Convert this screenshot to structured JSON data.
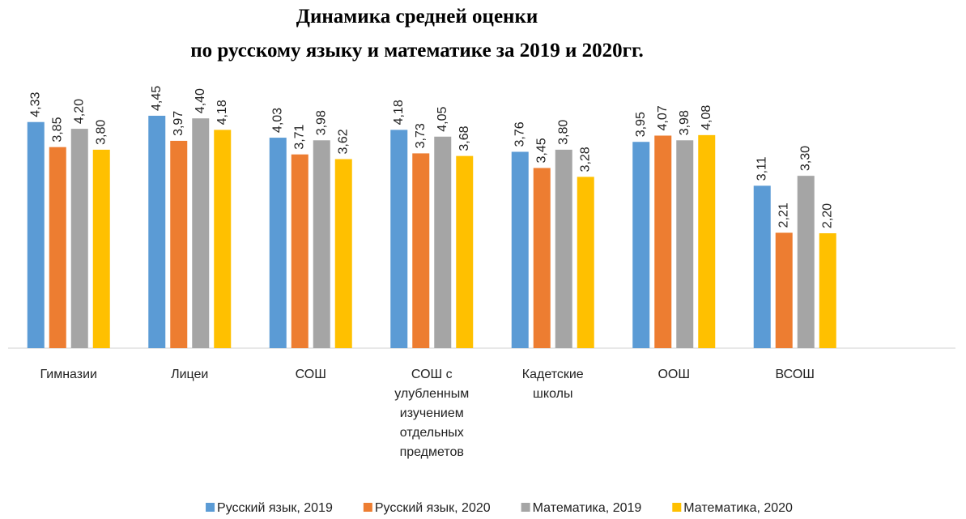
{
  "chart_data": {
    "type": "bar",
    "title_lines": [
      "Динамика средней оценки",
      "по русскому языку и математике за 2019 и 2020гг."
    ],
    "categories": [
      "Гимназии",
      "Лицеи",
      "СОШ",
      "СОШ с улубленным изучением отдельных предметов",
      "Кадетские школы",
      "ООШ",
      "ВСОШ"
    ],
    "series": [
      {
        "name": "Русский язык, 2019",
        "color": "#5b9bd5",
        "values": [
          4.33,
          4.45,
          4.03,
          4.18,
          3.76,
          3.95,
          3.11
        ],
        "value_labels": [
          "4,33",
          "4,45",
          "4,03",
          "4,18",
          "3,76",
          "3,95",
          "3,11"
        ]
      },
      {
        "name": "Русский язык, 2020",
        "color": "#ed7d31",
        "values": [
          3.85,
          3.97,
          3.71,
          3.73,
          3.45,
          4.07,
          2.21
        ],
        "value_labels": [
          "3,85",
          "3,97",
          "3,71",
          "3,73",
          "3,45",
          "4,07",
          "2,21"
        ]
      },
      {
        "name": "Математика, 2019",
        "color": "#a5a5a5",
        "values": [
          4.2,
          4.4,
          3.98,
          4.05,
          3.8,
          3.98,
          3.3
        ],
        "value_labels": [
          "4,20",
          "4,40",
          "3,98",
          "4,05",
          "3,80",
          "3,98",
          "3,30"
        ]
      },
      {
        "name": "Математика, 2020",
        "color": "#ffc000",
        "values": [
          3.8,
          4.18,
          3.62,
          3.68,
          3.28,
          4.08,
          2.2
        ],
        "value_labels": [
          "3,80",
          "4,18",
          "3,62",
          "3,68",
          "3,28",
          "4,08",
          "2,20"
        ]
      }
    ],
    "ylim": [
      0,
      5
    ],
    "legend": "bottom"
  }
}
